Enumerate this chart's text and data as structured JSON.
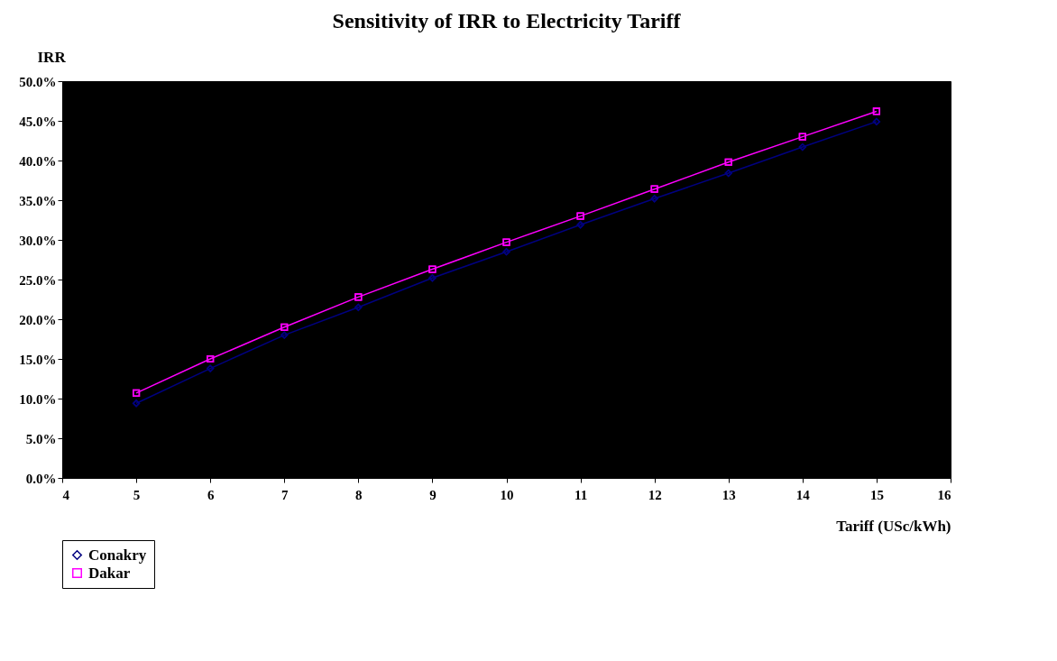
{
  "chart_data": {
    "type": "line",
    "title": "Sensitivity of IRR to Electricity Tariff",
    "xlabel": "Tariff (USc/kWh)",
    "ylabel": "IRR",
    "x": [
      5,
      6,
      7,
      8,
      9,
      10,
      11,
      12,
      13,
      14,
      15
    ],
    "series": [
      {
        "name": "Conakry",
        "color": "#000080",
        "marker": "diamond",
        "values": [
          9.4,
          13.8,
          18.0,
          21.5,
          25.2,
          28.5,
          31.9,
          35.2,
          38.4,
          41.7,
          44.9
        ]
      },
      {
        "name": "Dakar",
        "color": "#ff00ff",
        "marker": "square",
        "values": [
          10.7,
          15.0,
          19.0,
          22.8,
          26.3,
          29.7,
          33.0,
          36.4,
          39.8,
          43.0,
          46.2
        ]
      }
    ],
    "xlim": [
      4,
      16
    ],
    "xticks": [
      4,
      5,
      6,
      7,
      8,
      9,
      10,
      11,
      12,
      13,
      14,
      15,
      16
    ],
    "ylim": [
      0,
      50
    ],
    "yticks": [
      {
        "value": 0,
        "label": "0.0%"
      },
      {
        "value": 5,
        "label": "5.0%"
      },
      {
        "value": 10,
        "label": "10.0%"
      },
      {
        "value": 15,
        "label": "15.0%"
      },
      {
        "value": 20,
        "label": "20.0%"
      },
      {
        "value": 25,
        "label": "25.0%"
      },
      {
        "value": 30,
        "label": "30.0%"
      },
      {
        "value": 35,
        "label": "35.0%"
      },
      {
        "value": 40,
        "label": "40.0%"
      },
      {
        "value": 45,
        "label": "45.0%"
      },
      {
        "value": 50,
        "label": "50.0%"
      }
    ],
    "grid": false,
    "legend": "bottom",
    "line_style": "solid"
  }
}
